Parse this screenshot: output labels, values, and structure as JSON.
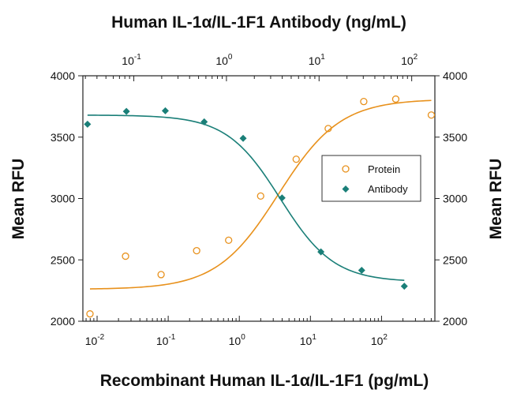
{
  "chart_data": {
    "type": "scatter",
    "title_top": "Human IL-1α/IL-1F1 Antibody (ng/mL)",
    "xlabel": "Recombinant Human IL-1α/IL-1F1 (pg/mL)",
    "ylabel_left": "Mean RFU",
    "ylabel_right": "Mean RFU",
    "x_scale": "log10",
    "xlim_log": [
      -2.2,
      2.75
    ],
    "xlim_top_log": [
      -1.55,
      2.25
    ],
    "ylim": [
      2000,
      4000
    ],
    "y_ticks": [
      "2000",
      "2500",
      "3000",
      "3500",
      "4000"
    ],
    "x_ticks": [
      {
        "base": "10",
        "exp": "-2"
      },
      {
        "base": "10",
        "exp": "-1"
      },
      {
        "base": "10",
        "exp": "0"
      },
      {
        "base": "10",
        "exp": "1"
      },
      {
        "base": "10",
        "exp": "2"
      }
    ],
    "x_ticks_top": [
      {
        "base": "10",
        "exp": "-1"
      },
      {
        "base": "10",
        "exp": "0"
      },
      {
        "base": "10",
        "exp": "1"
      },
      {
        "base": "10",
        "exp": "2"
      }
    ],
    "legend": [
      {
        "name": "Protein",
        "marker": "open-circle"
      },
      {
        "name": "Antibody",
        "marker": "filled-diamond"
      }
    ],
    "series": [
      {
        "name": "Protein",
        "axis": "bottom",
        "color": "#E8911C",
        "x_log": [
          -2.1,
          -1.6,
          -1.1,
          -0.6,
          -0.15,
          0.3,
          0.8,
          1.25,
          1.75,
          2.2,
          2.7
        ],
        "y": [
          2060,
          2530,
          2380,
          2575,
          2660,
          3020,
          3320,
          3570,
          3790,
          3810,
          3680
        ],
        "fit": {
          "bottom": 2260,
          "top": 3810,
          "log_ec50": 0.55,
          "hill": 1.0
        }
      },
      {
        "name": "Antibody",
        "axis": "top",
        "color": "#1A7F78",
        "x_log": [
          -1.5,
          -1.08,
          -0.66,
          -0.24,
          0.18,
          0.6,
          1.02,
          1.46,
          1.92
        ],
        "y": [
          3605,
          3710,
          3715,
          3625,
          3490,
          3005,
          2565,
          2415,
          2285
        ],
        "fit": {
          "bottom": 2320,
          "top": 3680,
          "log_ec50": 0.58,
          "hill": 1.5
        }
      }
    ]
  }
}
